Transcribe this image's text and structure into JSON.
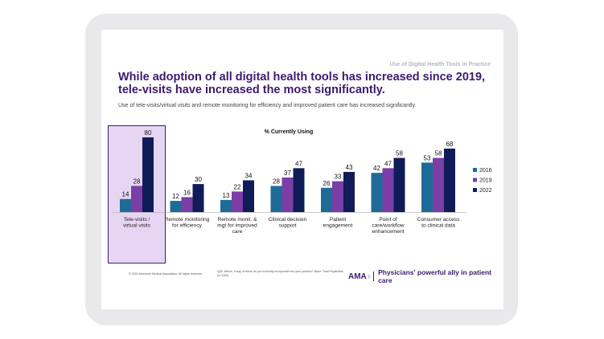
{
  "slide": {
    "header": "Use of Digital Health Tools in Practice",
    "title": "While adoption of all digital health tools has increased since 2019, tele-visits have increased the most significantly.",
    "subtitle": "Use of tele-visits/virtual visits and remote monitoring  for efficiency and improved patient care has increased significantly.",
    "footer_copyright": "© 2022 American Medical Association. All rights reserved.",
    "footer_question": "Q20. Which, if any, of these do you currently incorporate into your practice? Base: Total Physicians (n=1300)",
    "brand_logo": "AMA",
    "brand_tagline": "Physicians' powerful ally in patient care"
  },
  "chart_data": {
    "type": "bar",
    "title": "% Currently Using",
    "categories": [
      "Tele-visits / virtual visits",
      "Remote monitoring for efficiency",
      "Remote monit. & mgt for improved care",
      "Clinical decision support",
      "Patient engagement",
      "Point of care/workflow enhancement",
      "Consumer access to clinical data"
    ],
    "series": [
      {
        "name": "2016",
        "values": [
          14,
          12,
          13,
          28,
          26,
          42,
          53
        ],
        "color": "#1f6b98"
      },
      {
        "name": "2019",
        "values": [
          28,
          16,
          22,
          37,
          33,
          47,
          58
        ],
        "color": "#7a3ea6"
      },
      {
        "name": "2022",
        "values": [
          80,
          30,
          34,
          47,
          43,
          58,
          68
        ],
        "color": "#101c58"
      }
    ],
    "ylim": [
      0,
      80
    ],
    "legend": "right",
    "highlighted_category": "Tele-visits / virtual visits"
  }
}
